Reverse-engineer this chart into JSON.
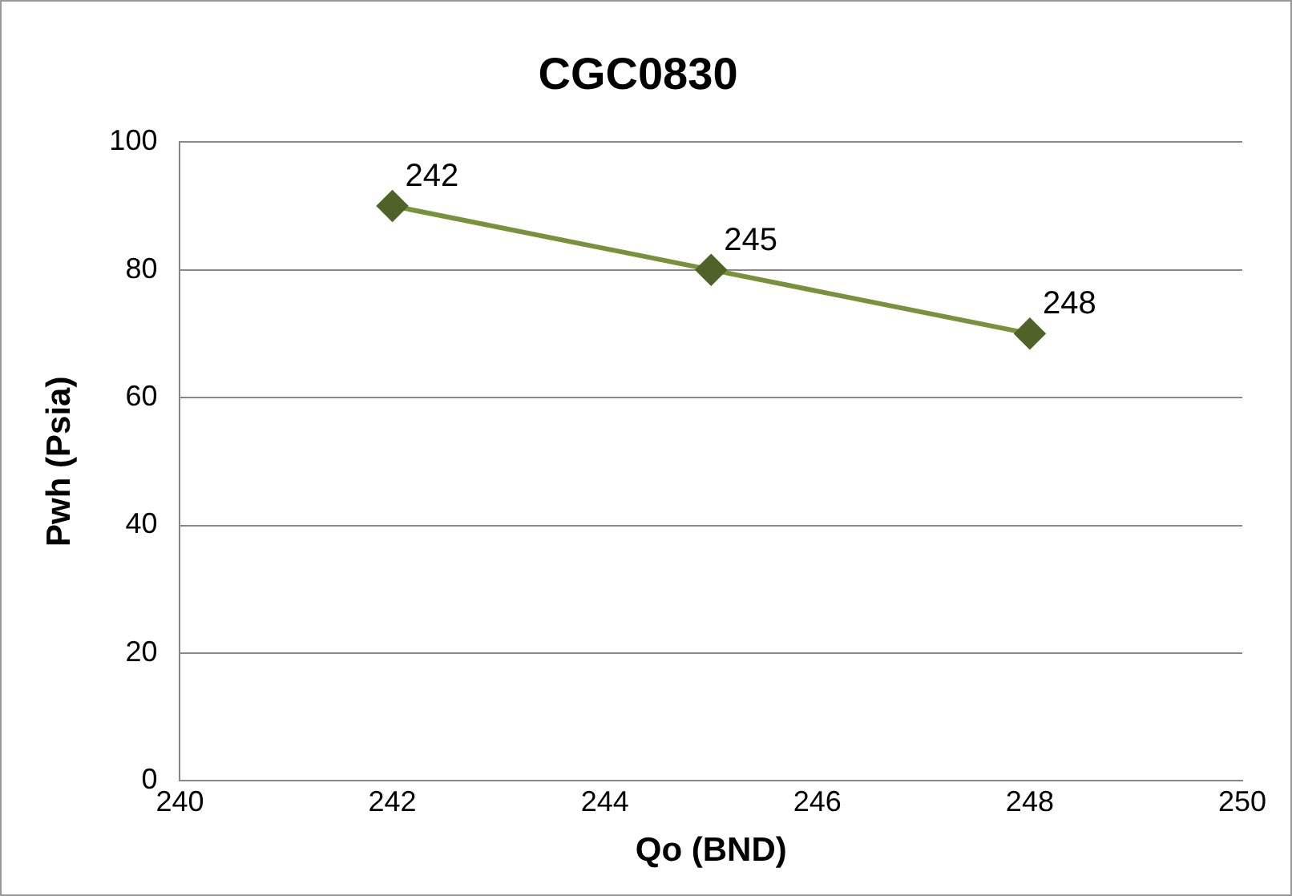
{
  "chart_data": {
    "type": "line",
    "title": "CGC0830",
    "xlabel": "Qo (BND)",
    "ylabel": "Pwh (Psia)",
    "x": [
      242,
      245,
      248
    ],
    "series": [
      {
        "color": "#76933c",
        "values": [
          90,
          80,
          70
        ]
      }
    ],
    "annotations": [
      {
        "text": "242",
        "x": 242,
        "y": 90
      },
      {
        "text": "245",
        "x": 245,
        "y": 80
      },
      {
        "text": "248",
        "x": 248,
        "y": 70
      }
    ],
    "xlim": [
      240,
      250
    ],
    "xticks": [
      240,
      242,
      244,
      246,
      248,
      250
    ],
    "ylim": [
      0,
      100
    ],
    "yticks": [
      0,
      20,
      40,
      60,
      80,
      100
    ],
    "grid": "y",
    "legend": false,
    "marker": "diamond",
    "line_style": "solid"
  }
}
